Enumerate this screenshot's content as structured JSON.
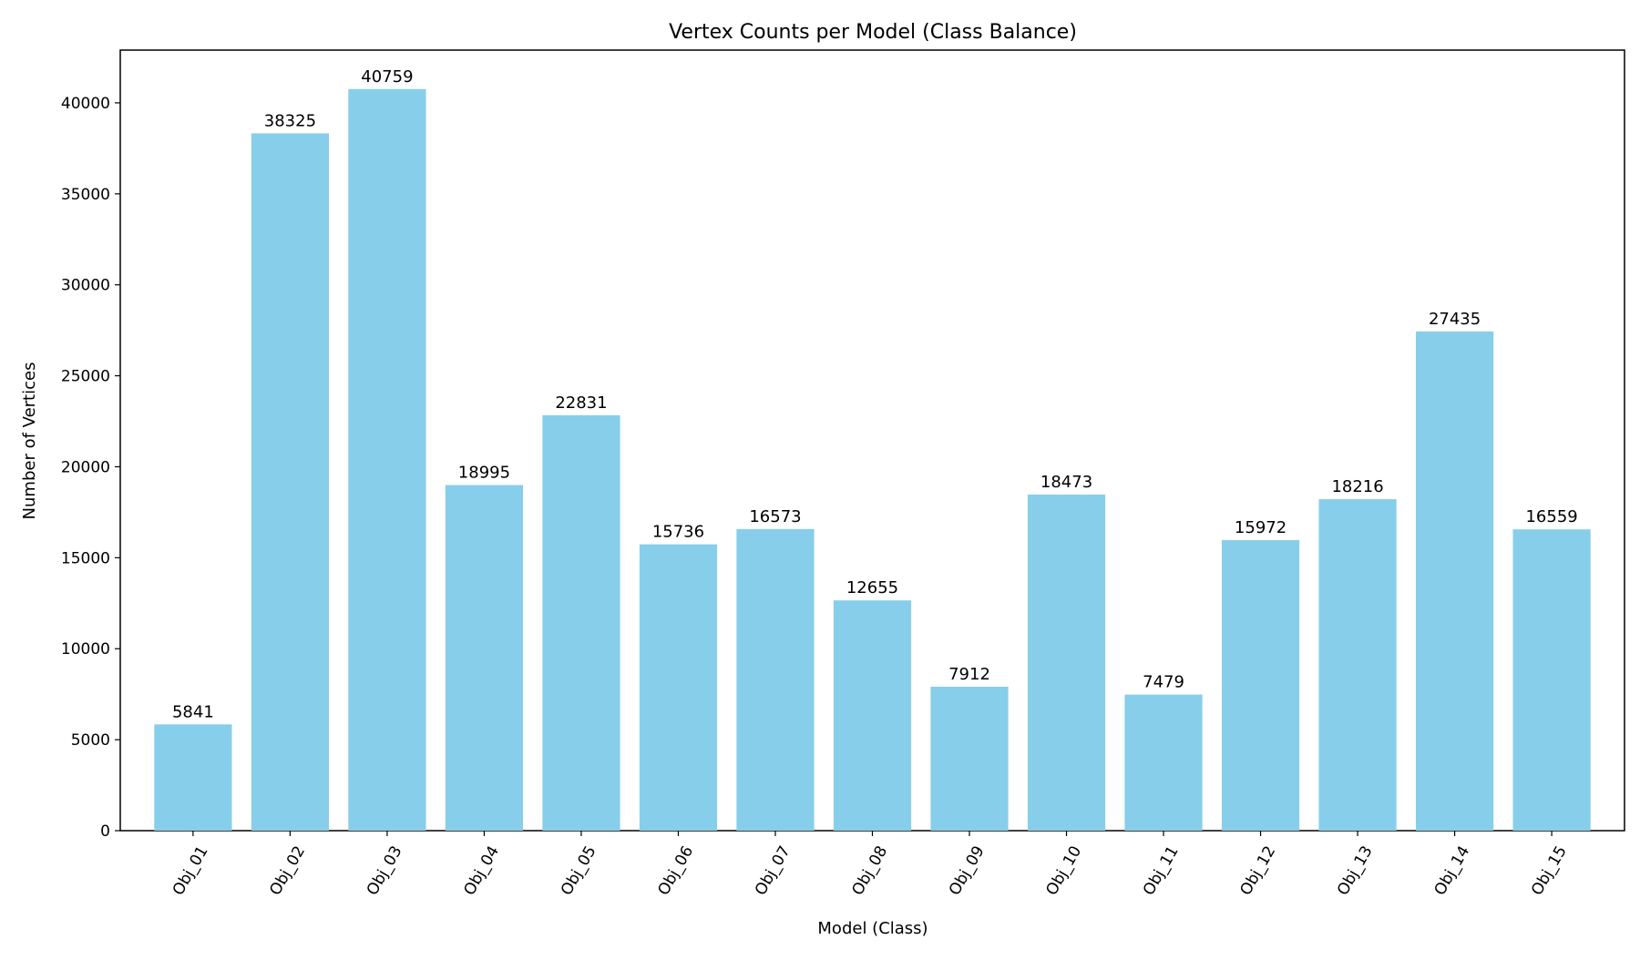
{
  "chart_data": {
    "type": "bar",
    "title": "Vertex Counts per Model (Class Balance)",
    "xlabel": "Model (Class)",
    "ylabel": "Number of Vertices",
    "categories": [
      "Obj_01",
      "Obj_02",
      "Obj_03",
      "Obj_04",
      "Obj_05",
      "Obj_06",
      "Obj_07",
      "Obj_08",
      "Obj_09",
      "Obj_10",
      "Obj_11",
      "Obj_12",
      "Obj_13",
      "Obj_14",
      "Obj_15"
    ],
    "values": [
      5841,
      38325,
      40759,
      18995,
      22831,
      15736,
      16573,
      12655,
      7912,
      18473,
      7479,
      15972,
      18216,
      27435,
      16559
    ],
    "ylim": [
      0,
      42900
    ],
    "yticks": [
      0,
      5000,
      10000,
      15000,
      20000,
      25000,
      30000,
      35000,
      40000
    ],
    "grid": false,
    "data_labels": true,
    "x_tick_rotation_deg": 60,
    "colors": {
      "bar": "#87CEEB",
      "axis": "#000000",
      "text": "#000000"
    }
  }
}
